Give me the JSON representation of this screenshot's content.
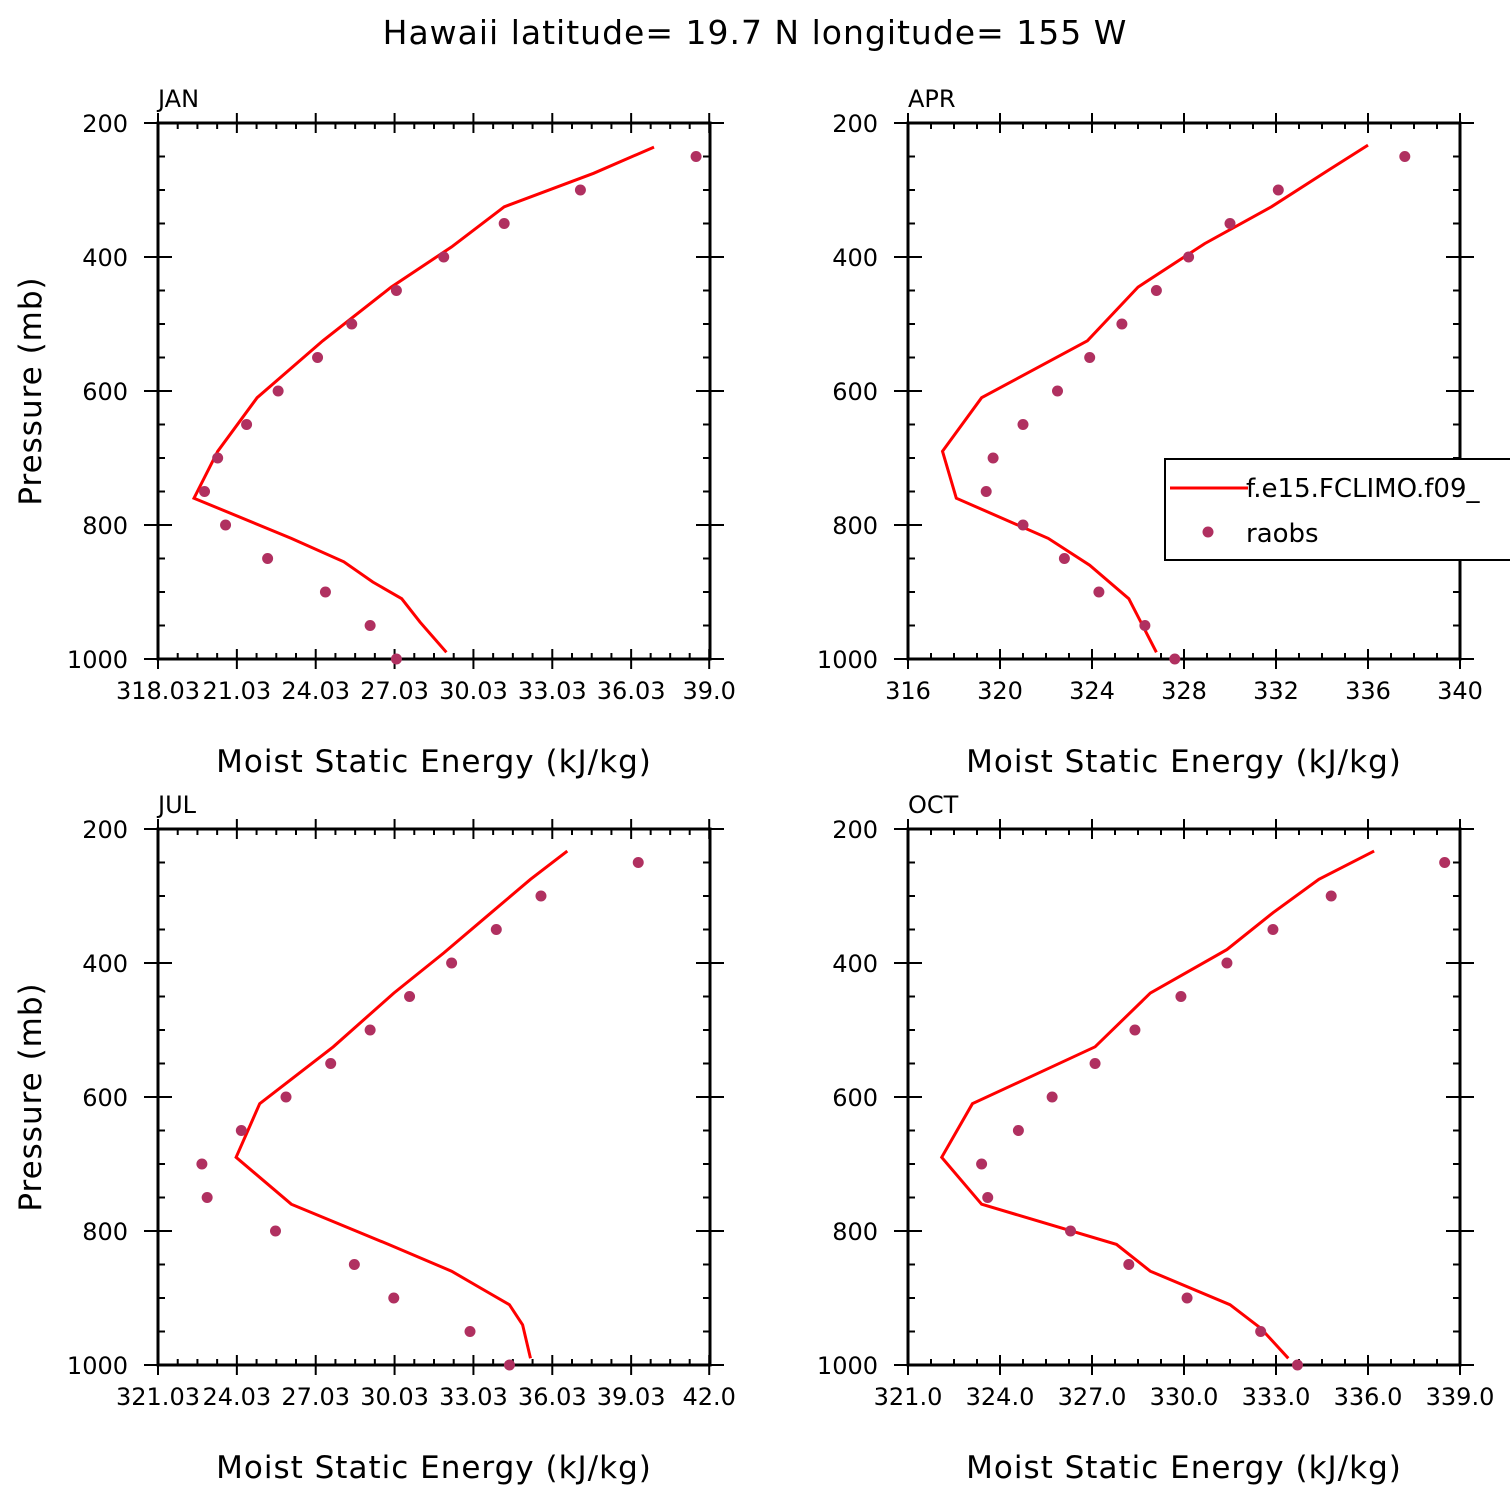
{
  "title": "Hawaii  latitude= 19.7 N longitude= 155 W",
  "legend": {
    "entries": [
      "f.e15.FCLIMO.f09_",
      "raobs"
    ]
  },
  "colors": {
    "model_line": "#ff0000",
    "raobs_dots": "#b03060"
  },
  "chart_data": [
    {
      "type": "line",
      "panel": "JAN",
      "xlabel": "Moist Static Energy (kJ/kg)",
      "ylabel": "Pressure (mb)",
      "xlim": [
        318.03,
        339.03
      ],
      "ylim": [
        1000,
        200
      ],
      "xticks": [
        318.03,
        321.03,
        324.03,
        327.03,
        330.03,
        333.03,
        336.03,
        339.0
      ],
      "xtick_labels": [
        "318.03",
        "21.03",
        "24.03",
        "27.03",
        "30.03",
        "33.03",
        "36.03",
        "39.0"
      ],
      "yticks": [
        200,
        400,
        600,
        800,
        1000
      ],
      "ytick_labels": [
        "200",
        "400",
        "600",
        "800",
        "1000"
      ],
      "series": [
        {
          "name": "f.e15.FCLIMO.f09_",
          "style": "line",
          "pressure": [
            236,
            275,
            325,
            385,
            445,
            525,
            610,
            690,
            760,
            820,
            855,
            885,
            910,
            945,
            990
          ],
          "mse": [
            336.9,
            334.6,
            331.2,
            329.2,
            326.9,
            324.3,
            321.8,
            320.3,
            319.4,
            323.1,
            325.1,
            326.2,
            327.3,
            328.0,
            329.0
          ]
        },
        {
          "name": "raobs",
          "style": "points",
          "pressure": [
            250,
            300,
            350,
            400,
            450,
            500,
            550,
            600,
            650,
            700,
            750,
            800,
            850,
            900,
            950,
            1000
          ],
          "mse": [
            338.5,
            334.1,
            331.2,
            328.9,
            327.1,
            325.4,
            324.1,
            322.6,
            321.4,
            320.3,
            319.8,
            320.6,
            322.2,
            324.4,
            326.1,
            327.1
          ]
        }
      ]
    },
    {
      "type": "line",
      "panel": "APR",
      "xlabel": "Moist Static Energy (kJ/kg)",
      "ylabel": "",
      "xlim": [
        316,
        340
      ],
      "ylim": [
        1000,
        200
      ],
      "xticks": [
        316,
        320,
        324,
        328,
        332,
        336,
        340
      ],
      "xtick_labels": [
        "316",
        "320",
        "324",
        "328",
        "332",
        "336",
        "340"
      ],
      "yticks": [
        200,
        400,
        600,
        800,
        1000
      ],
      "ytick_labels": [
        "200",
        "400",
        "600",
        "800",
        "1000"
      ],
      "series": [
        {
          "name": "f.e15.FCLIMO.f09_",
          "style": "line",
          "pressure": [
            233,
            270,
            325,
            380,
            445,
            525,
            610,
            690,
            760,
            820,
            860,
            910,
            950,
            990
          ],
          "mse": [
            336.0,
            334.3,
            331.8,
            328.9,
            326.0,
            323.8,
            319.2,
            317.5,
            318.1,
            322.1,
            323.9,
            325.6,
            326.2,
            326.8
          ]
        },
        {
          "name": "raobs",
          "style": "points",
          "pressure": [
            250,
            300,
            350,
            400,
            450,
            500,
            550,
            600,
            650,
            700,
            750,
            800,
            850,
            900,
            950,
            1000
          ],
          "mse": [
            337.6,
            332.1,
            330.0,
            328.2,
            326.8,
            325.3,
            323.9,
            322.5,
            321.0,
            319.7,
            319.4,
            321.0,
            322.8,
            324.3,
            326.3,
            327.6
          ]
        }
      ]
    },
    {
      "type": "line",
      "panel": "JUL",
      "xlabel": "Moist Static Energy (kJ/kg)",
      "ylabel": "Pressure (mb)",
      "xlim": [
        321.03,
        342.03
      ],
      "ylim": [
        1000,
        200
      ],
      "xticks": [
        321.03,
        324.03,
        327.03,
        330.03,
        333.03,
        336.03,
        339.03,
        342.0
      ],
      "xtick_labels": [
        "321.03",
        "24.03",
        "27.03",
        "30.03",
        "33.03",
        "36.03",
        "39.03",
        "42.0"
      ],
      "yticks": [
        200,
        400,
        600,
        800,
        1000
      ],
      "ytick_labels": [
        "200",
        "400",
        "600",
        "800",
        "1000"
      ],
      "series": [
        {
          "name": "f.e15.FCLIMO.f09_",
          "style": "line",
          "pressure": [
            233,
            275,
            325,
            385,
            445,
            525,
            610,
            690,
            760,
            820,
            860,
            885,
            910,
            940,
            990
          ],
          "mse": [
            336.6,
            335.2,
            333.7,
            331.9,
            330.0,
            327.7,
            324.9,
            324.0,
            326.1,
            329.8,
            332.2,
            333.3,
            334.4,
            334.9,
            335.2
          ]
        },
        {
          "name": "raobs",
          "style": "points",
          "pressure": [
            250,
            300,
            350,
            400,
            450,
            500,
            550,
            600,
            650,
            700,
            750,
            800,
            850,
            900,
            950,
            1000
          ],
          "mse": [
            339.3,
            335.6,
            333.9,
            332.2,
            330.6,
            329.1,
            327.6,
            325.9,
            324.2,
            322.7,
            322.9,
            325.5,
            328.5,
            330.0,
            332.9,
            334.4
          ]
        }
      ]
    },
    {
      "type": "line",
      "panel": "OCT",
      "xlabel": "Moist Static Energy (kJ/kg)",
      "ylabel": "",
      "xlim": [
        321.0,
        339.0
      ],
      "ylim": [
        1000,
        200
      ],
      "xticks": [
        321.0,
        324.0,
        327.0,
        330.0,
        333.0,
        336.0,
        339.0
      ],
      "xtick_labels": [
        "321.0",
        "324.0",
        "327.0",
        "330.0",
        "333.0",
        "336.0",
        "339.0"
      ],
      "yticks": [
        200,
        400,
        600,
        800,
        1000
      ],
      "ytick_labels": [
        "200",
        "400",
        "600",
        "800",
        "1000"
      ],
      "series": [
        {
          "name": "f.e15.FCLIMO.f09_",
          "style": "line",
          "pressure": [
            233,
            275,
            325,
            380,
            445,
            525,
            610,
            690,
            760,
            820,
            860,
            910,
            945,
            990
          ],
          "mse": [
            336.2,
            334.4,
            332.9,
            331.4,
            328.9,
            327.1,
            323.1,
            322.1,
            323.4,
            327.8,
            328.9,
            331.5,
            332.5,
            333.4
          ]
        },
        {
          "name": "raobs",
          "style": "points",
          "pressure": [
            250,
            300,
            350,
            400,
            450,
            500,
            550,
            600,
            650,
            700,
            750,
            800,
            850,
            900,
            950,
            1000
          ],
          "mse": [
            338.5,
            334.8,
            332.9,
            331.4,
            329.9,
            328.4,
            327.1,
            325.7,
            324.6,
            323.4,
            323.6,
            326.3,
            328.2,
            330.1,
            332.5,
            333.7
          ]
        }
      ]
    }
  ]
}
